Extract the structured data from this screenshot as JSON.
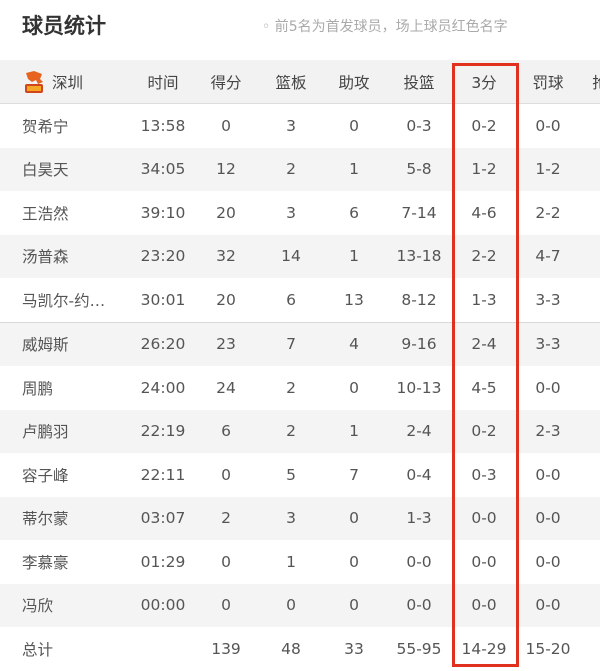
{
  "title": "球员统计",
  "note": "◦ 前5名为首发球员，场上球员红色名字",
  "team": {
    "name": "深圳",
    "logo": "shenzhen-leopards-logo"
  },
  "highlight_color": "#e0301e",
  "columns": [
    "时间",
    "得分",
    "篮板",
    "助攻",
    "投篮",
    "3分",
    "罚球",
    "抢"
  ],
  "players": [
    {
      "name": "贺希宁",
      "time": "13:58",
      "pts": "0",
      "reb": "3",
      "ast": "0",
      "fg": "0-3",
      "tp": "0-2",
      "ft": "0-0"
    },
    {
      "name": "白昊天",
      "time": "34:05",
      "pts": "12",
      "reb": "2",
      "ast": "1",
      "fg": "5-8",
      "tp": "1-2",
      "ft": "1-2"
    },
    {
      "name": "王浩然",
      "time": "39:10",
      "pts": "20",
      "reb": "3",
      "ast": "6",
      "fg": "7-14",
      "tp": "4-6",
      "ft": "2-2"
    },
    {
      "name": "汤普森",
      "time": "23:20",
      "pts": "32",
      "reb": "14",
      "ast": "1",
      "fg": "13-18",
      "tp": "2-2",
      "ft": "4-7"
    },
    {
      "name": "马凯尔-约…",
      "time": "30:01",
      "pts": "20",
      "reb": "6",
      "ast": "13",
      "fg": "8-12",
      "tp": "1-3",
      "ft": "3-3"
    },
    {
      "name": "威姆斯",
      "time": "26:20",
      "pts": "23",
      "reb": "7",
      "ast": "4",
      "fg": "9-16",
      "tp": "2-4",
      "ft": "3-3"
    },
    {
      "name": "周鹏",
      "time": "24:00",
      "pts": "24",
      "reb": "2",
      "ast": "0",
      "fg": "10-13",
      "tp": "4-5",
      "ft": "0-0"
    },
    {
      "name": "卢鹏羽",
      "time": "22:19",
      "pts": "6",
      "reb": "2",
      "ast": "1",
      "fg": "2-4",
      "tp": "0-2",
      "ft": "2-3"
    },
    {
      "name": "容子峰",
      "time": "22:11",
      "pts": "0",
      "reb": "5",
      "ast": "7",
      "fg": "0-4",
      "tp": "0-3",
      "ft": "0-0"
    },
    {
      "name": "蒂尔蒙",
      "time": "03:07",
      "pts": "2",
      "reb": "3",
      "ast": "0",
      "fg": "1-3",
      "tp": "0-0",
      "ft": "0-0"
    },
    {
      "name": "李慕豪",
      "time": "01:29",
      "pts": "0",
      "reb": "1",
      "ast": "0",
      "fg": "0-0",
      "tp": "0-0",
      "ft": "0-0"
    },
    {
      "name": "冯欣",
      "time": "00:00",
      "pts": "0",
      "reb": "0",
      "ast": "0",
      "fg": "0-0",
      "tp": "0-0",
      "ft": "0-0"
    }
  ],
  "total": {
    "name": "总计",
    "time": "",
    "pts": "139",
    "reb": "48",
    "ast": "33",
    "fg": "55-95",
    "tp": "14-29",
    "ft": "15-20"
  }
}
